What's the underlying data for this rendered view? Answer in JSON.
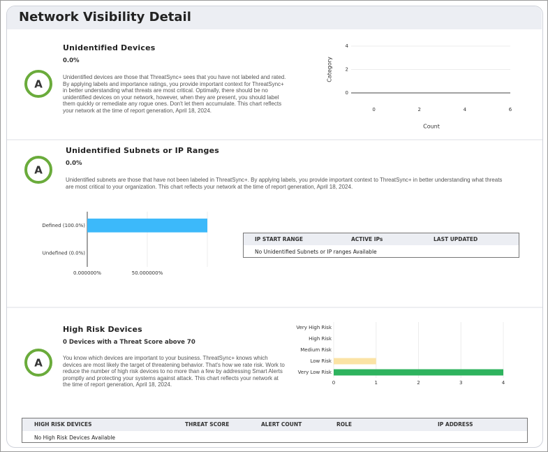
{
  "header": {
    "title": "Network Visibility Detail"
  },
  "sections": [
    {
      "grade": "A",
      "title": "Unidentified Devices",
      "subtitle": "0.0%",
      "description": "Unidentified devices are those that ThreatSync+ sees that you have not labeled and rated. By applying labels and importance ratings, you provide important context for ThreatSync+ in better understanding what threats are most critical. Optimally, there should be no unidentified devices on your network, however, when they are present, you should label them quickly or remediate any rogue ones. Don't let them accumulate. This chart reflects your network at the time of report generation, April 18, 2024."
    },
    {
      "grade": "A",
      "title": "Unidentified Subnets or IP Ranges",
      "subtitle": "0.0%",
      "description": "Unidentified subnets are those that have not been labeled in ThreatSync+. By applying labels, you provide important context to ThreatSync+ in better understanding what threats are most critical to your organization. This chart reflects your network at the time of report generation, April 18, 2024."
    },
    {
      "grade": "A",
      "title": "High Risk Devices",
      "subtitle": "0 Devices with a Threat Score above 70",
      "description": "You know which devices are important to your business. ThreatSync+ knows which devices are most likely the target of threatening behavior. That's how we rate risk. Work to reduce the number of high risk devices to no more than a few by addressing Smart Alerts promptly and protecting your systems against attack. This chart reflects your network at the time of report generation, April 18, 2024."
    }
  ],
  "tables": [
    {
      "columns": [
        "IP START RANGE",
        "ACTIVE IPs",
        "LAST UPDATED"
      ],
      "empty_message": "No Unidentified Subnets or IP ranges Available"
    },
    {
      "columns": [
        "HIGH RISK DEVICES",
        "THREAT SCORE",
        "ALERT COUNT",
        "ROLE",
        "IP ADDRESS"
      ],
      "empty_message": "No High Risk Devices Available"
    }
  ],
  "chart_data": [
    {
      "type": "bar",
      "orientation": "horizontal",
      "categories": [],
      "values": [],
      "xlabel": "Count",
      "ylabel": "Category",
      "xlim": [
        -1,
        6
      ],
      "xticks": [
        0,
        2,
        4,
        6
      ],
      "ylim": [
        0,
        4
      ],
      "yticks": [
        0,
        2,
        4
      ]
    },
    {
      "type": "bar",
      "orientation": "horizontal",
      "categories": [
        "Defined (100.0%)",
        "Undefined (0.0%)"
      ],
      "values": [
        100,
        0
      ],
      "color": "#3cb9fa",
      "xlim": [
        0,
        100
      ],
      "xticks": [
        {
          "value": 0,
          "label": "0.000000%"
        },
        {
          "value": 50,
          "label": "50.000000%"
        }
      ]
    },
    {
      "type": "bar",
      "orientation": "horizontal",
      "categories": [
        "Very High Risk",
        "High Risk",
        "Medium Risk",
        "Low Risk",
        "Very Low Risk"
      ],
      "values": [
        0,
        0,
        0,
        1,
        4
      ],
      "colors": [
        "#d9342b",
        "#f28c28",
        "#f5c242",
        "#fbe3a5",
        "#2eb35e"
      ],
      "xlim": [
        0,
        4
      ],
      "xticks": [
        0,
        1,
        2,
        3,
        4
      ]
    }
  ]
}
